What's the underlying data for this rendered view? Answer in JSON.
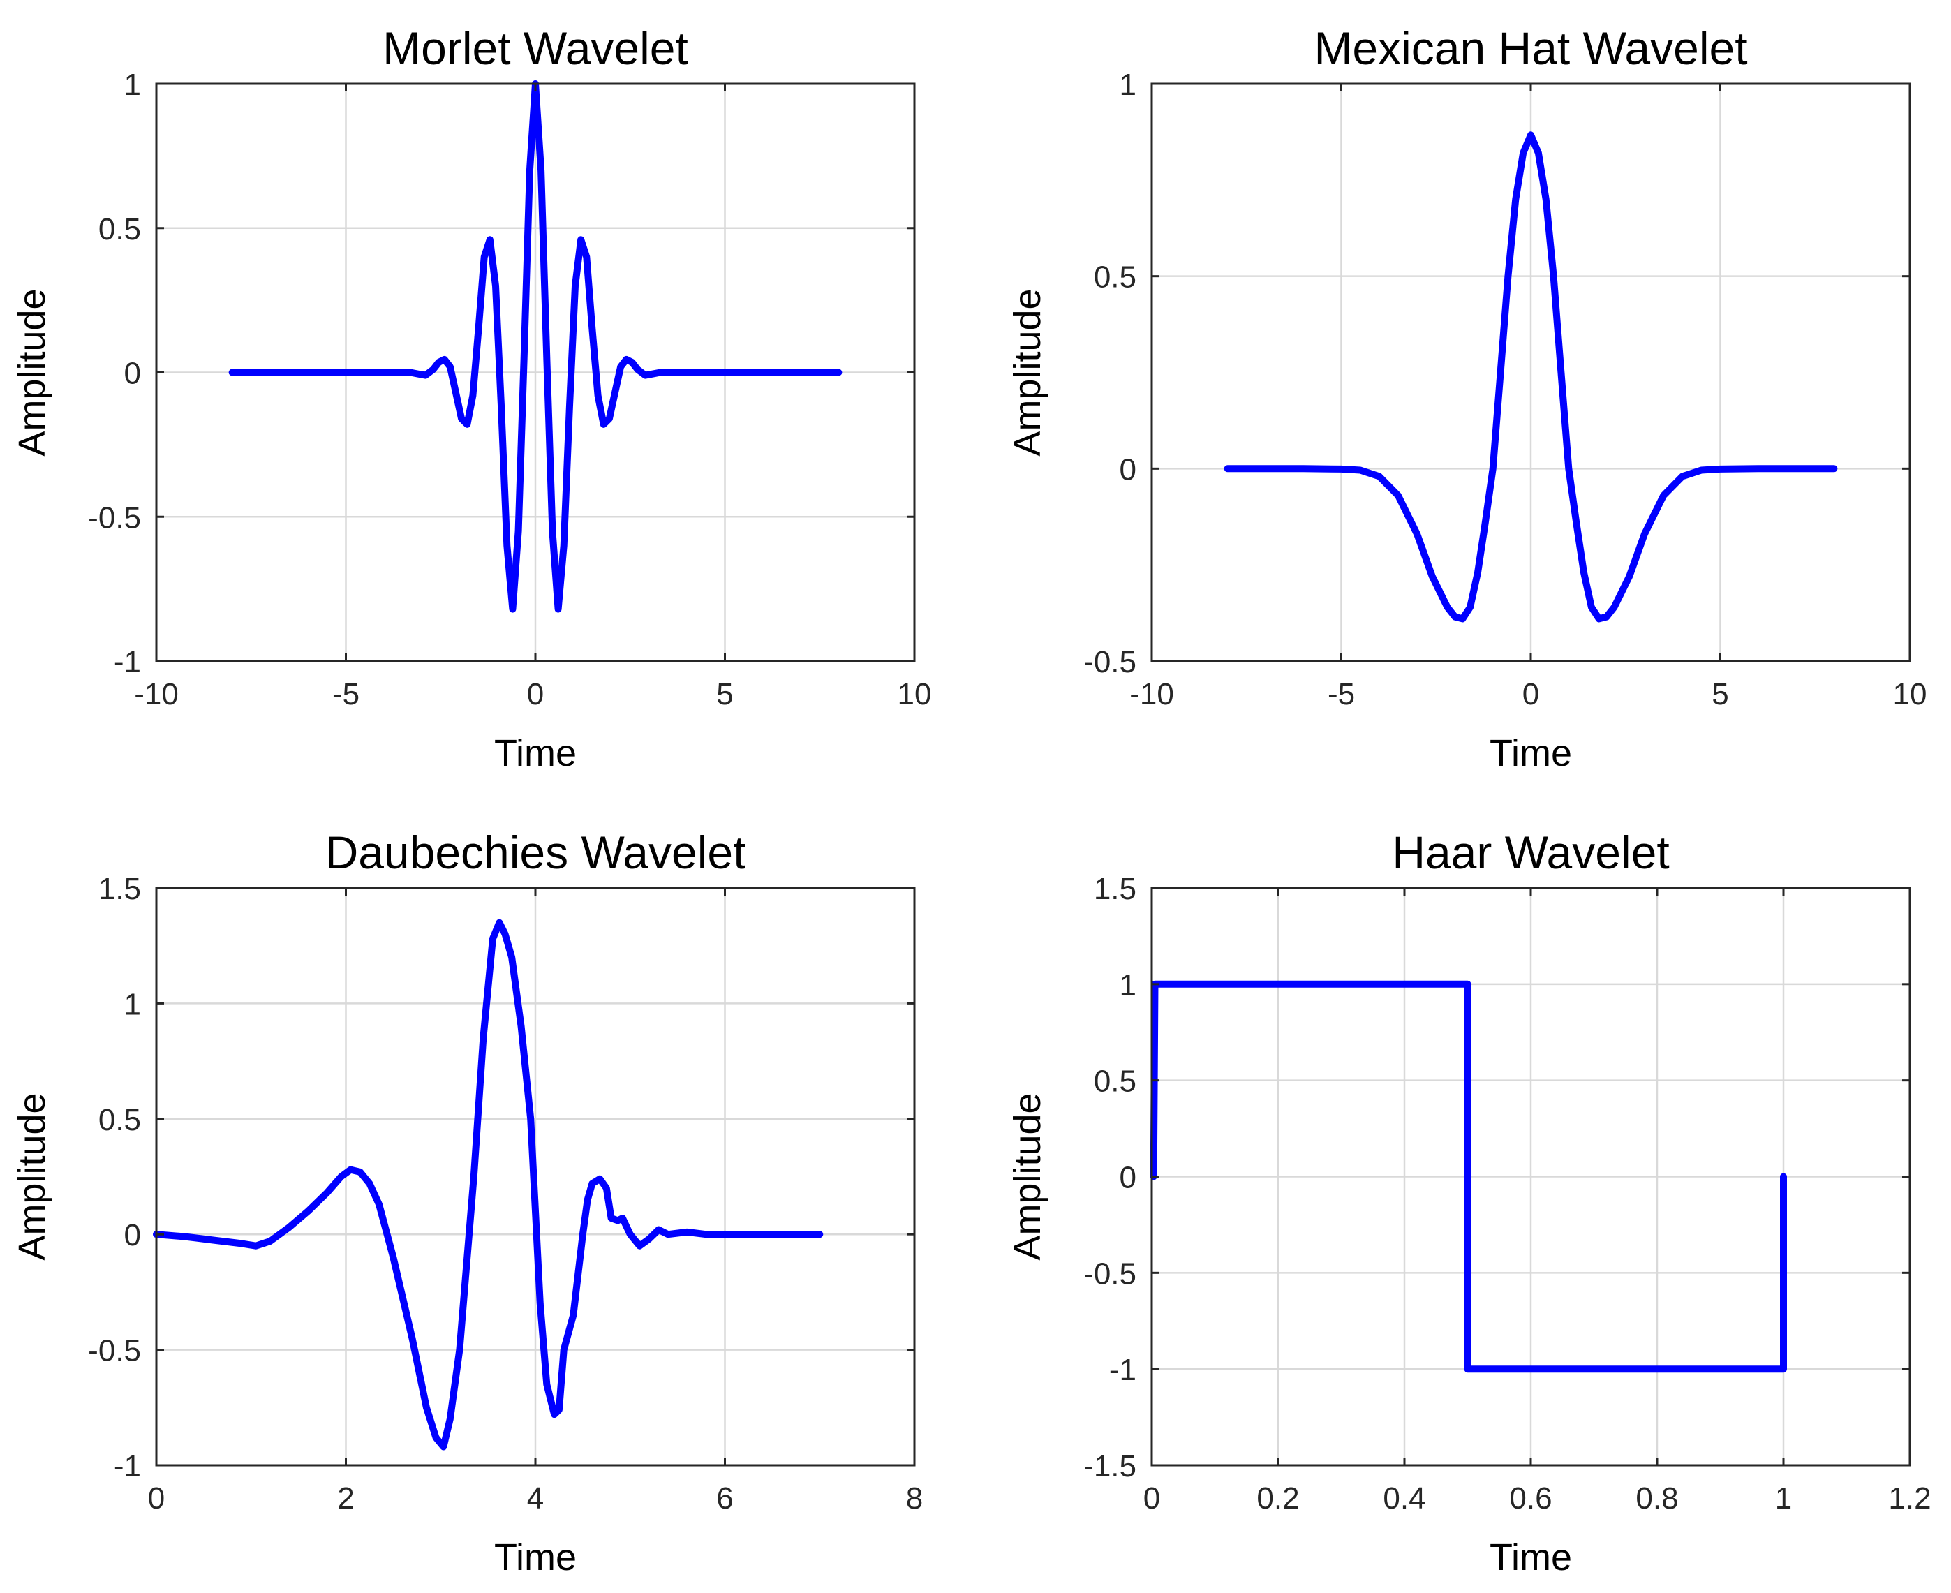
{
  "chart_data": [
    {
      "type": "line",
      "title": "Morlet Wavelet",
      "xlabel": "Time",
      "ylabel": "Amplitude",
      "xlim": [
        -10,
        10
      ],
      "ylim": [
        -1,
        1
      ],
      "xticks": [
        -10,
        -5,
        0,
        5,
        10
      ],
      "yticks": [
        -1,
        -0.5,
        0,
        0.5,
        1
      ],
      "grid": true,
      "series": [
        {
          "name": "Morlet",
          "color": "#0000ff",
          "x": [
            -8,
            -6,
            -4,
            -3.5,
            -3.3,
            -3.1,
            -2.9,
            -2.7,
            -2.55,
            -2.4,
            -2.25,
            -2.1,
            -1.95,
            -1.8,
            -1.65,
            -1.5,
            -1.35,
            -1.2,
            -1.05,
            -0.9,
            -0.75,
            -0.6,
            -0.45,
            -0.3,
            -0.15,
            0,
            0.15,
            0.3,
            0.45,
            0.6,
            0.75,
            0.9,
            1.05,
            1.2,
            1.35,
            1.5,
            1.65,
            1.8,
            1.95,
            2.1,
            2.25,
            2.4,
            2.55,
            2.7,
            2.9,
            3.1,
            3.3,
            3.5,
            4,
            6,
            8
          ],
          "y": [
            0,
            0,
            0,
            0,
            0,
            -0.005,
            -0.01,
            0.01,
            0.035,
            0.045,
            0.02,
            -0.07,
            -0.16,
            -0.18,
            -0.08,
            0.15,
            0.4,
            0.46,
            0.3,
            -0.12,
            -0.6,
            -0.82,
            -0.55,
            0.05,
            0.7,
            1.0,
            0.7,
            0.05,
            -0.55,
            -0.82,
            -0.6,
            -0.12,
            0.3,
            0.46,
            0.4,
            0.15,
            -0.08,
            -0.18,
            -0.16,
            -0.07,
            0.02,
            0.045,
            0.035,
            0.01,
            -0.01,
            -0.005,
            0,
            0,
            0,
            0,
            0
          ]
        }
      ]
    },
    {
      "type": "line",
      "title": "Mexican Hat Wavelet",
      "xlabel": "Time",
      "ylabel": "Amplitude",
      "xlim": [
        -10,
        10
      ],
      "ylim": [
        -0.5,
        1
      ],
      "xticks": [
        -10,
        -5,
        0,
        5,
        10
      ],
      "yticks": [
        -0.5,
        0,
        0.5,
        1
      ],
      "grid": true,
      "series": [
        {
          "name": "Mexican Hat",
          "color": "#0000ff",
          "x": [
            -8,
            -7,
            -6,
            -5,
            -4.5,
            -4,
            -3.5,
            -3,
            -2.6,
            -2.2,
            -2,
            -1.8,
            -1.6,
            -1.4,
            -1.2,
            -1,
            -0.8,
            -0.6,
            -0.4,
            -0.2,
            0,
            0.2,
            0.4,
            0.6,
            0.8,
            1,
            1.2,
            1.4,
            1.6,
            1.8,
            2,
            2.2,
            2.6,
            3,
            3.5,
            4,
            4.5,
            5,
            6,
            7,
            8
          ],
          "y": [
            0,
            0,
            0,
            -0.001,
            -0.004,
            -0.02,
            -0.07,
            -0.17,
            -0.28,
            -0.36,
            -0.385,
            -0.39,
            -0.36,
            -0.27,
            -0.14,
            0.0,
            0.25,
            0.5,
            0.7,
            0.82,
            0.867,
            0.82,
            0.7,
            0.5,
            0.25,
            0.0,
            -0.14,
            -0.27,
            -0.36,
            -0.39,
            -0.385,
            -0.36,
            -0.28,
            -0.17,
            -0.07,
            -0.02,
            -0.004,
            -0.001,
            0,
            0,
            0
          ]
        }
      ]
    },
    {
      "type": "line",
      "title": "Daubechies Wavelet",
      "xlabel": "Time",
      "ylabel": "Amplitude",
      "xlim": [
        0,
        8
      ],
      "ylim": [
        -1,
        1.5
      ],
      "xticks": [
        0,
        2,
        4,
        6,
        8
      ],
      "yticks": [
        -1,
        -0.5,
        0,
        0.5,
        1,
        1.5
      ],
      "grid": true,
      "series": [
        {
          "name": "Daubechies",
          "color": "#0000ff",
          "x": [
            0,
            0.3,
            0.6,
            0.9,
            1.05,
            1.2,
            1.4,
            1.6,
            1.8,
            1.95,
            2.05,
            2.15,
            2.25,
            2.35,
            2.5,
            2.7,
            2.85,
            2.95,
            3.03,
            3.1,
            3.2,
            3.35,
            3.45,
            3.55,
            3.62,
            3.68,
            3.75,
            3.85,
            3.95,
            4.0,
            4.05,
            4.12,
            4.2,
            4.25,
            4.3,
            4.4,
            4.5,
            4.55,
            4.6,
            4.68,
            4.75,
            4.8,
            4.87,
            4.92,
            5.0,
            5.1,
            5.2,
            5.3,
            5.4,
            5.6,
            5.8,
            6.0,
            6.5,
            7.0
          ],
          "y": [
            0,
            -0.01,
            -0.025,
            -0.04,
            -0.05,
            -0.03,
            0.03,
            0.1,
            0.18,
            0.25,
            0.28,
            0.27,
            0.22,
            0.13,
            -0.1,
            -0.45,
            -0.75,
            -0.88,
            -0.92,
            -0.8,
            -0.5,
            0.25,
            0.85,
            1.28,
            1.35,
            1.3,
            1.2,
            0.9,
            0.5,
            0.1,
            -0.3,
            -0.65,
            -0.78,
            -0.76,
            -0.5,
            -0.35,
            0.0,
            0.15,
            0.22,
            0.24,
            0.2,
            0.07,
            0.06,
            0.07,
            0.0,
            -0.05,
            -0.02,
            0.02,
            0.0,
            0.01,
            0.0,
            0.0,
            0.0,
            0.0
          ]
        }
      ]
    },
    {
      "type": "line",
      "title": "Haar Wavelet",
      "xlabel": "Time",
      "ylabel": "Amplitude",
      "xlim": [
        0,
        1.2
      ],
      "ylim": [
        -1.5,
        1.5
      ],
      "xticks": [
        0,
        0.2,
        0.4,
        0.6,
        0.8,
        1,
        1.2
      ],
      "yticks": [
        -1.5,
        -1,
        -0.5,
        0,
        0.5,
        1,
        1.5
      ],
      "grid": true,
      "series": [
        {
          "name": "Haar",
          "color": "#0000ff",
          "x": [
            0.003,
            0.005,
            0.5,
            0.5,
            1.0,
            1.0
          ],
          "y": [
            0,
            1,
            1,
            -1,
            -1,
            0
          ]
        }
      ]
    }
  ]
}
